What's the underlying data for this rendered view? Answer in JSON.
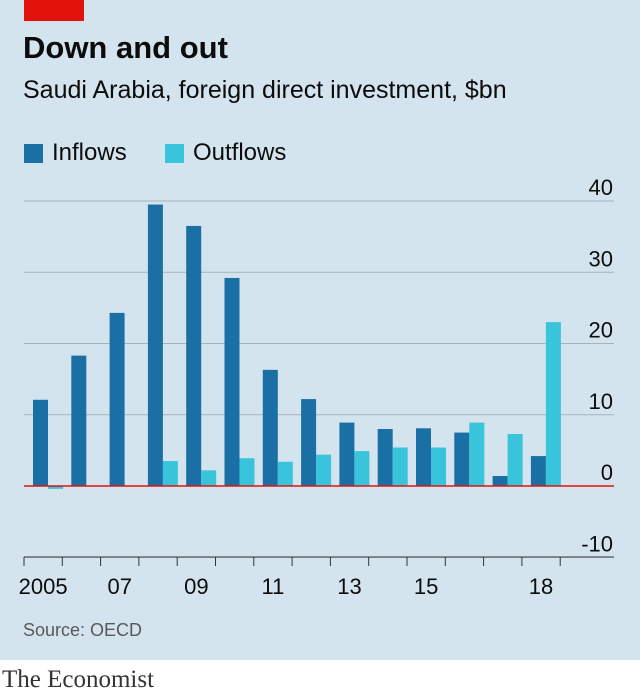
{
  "header": {
    "title": "Down and out",
    "subtitle": "Saudi Arabia, foreign direct investment, $bn"
  },
  "legend": [
    {
      "label": "Inflows",
      "color": "#1a6fa5"
    },
    {
      "label": "Outflows",
      "color": "#38c4db"
    }
  ],
  "footer": {
    "source": "Source: OECD",
    "brand": "The Economist"
  },
  "colors": {
    "background": "#d4e4ee",
    "accent": "#e3120b",
    "gridline": "#a9b2b8",
    "zero_line": "#e3120b"
  },
  "chart_data": {
    "type": "bar",
    "categories": [
      "2005",
      "2006",
      "2007",
      "2008",
      "2009",
      "2010",
      "2011",
      "2012",
      "2013",
      "2014",
      "2015",
      "2016",
      "2017",
      "2018"
    ],
    "tick_labels": [
      "2005",
      "",
      "07",
      "",
      "09",
      "",
      "11",
      "",
      "13",
      "",
      "15",
      "",
      "",
      "18"
    ],
    "series": [
      {
        "name": "Inflows",
        "values": [
          12.1,
          18.3,
          24.3,
          39.5,
          36.5,
          29.2,
          16.3,
          12.2,
          8.9,
          8.0,
          8.1,
          7.5,
          1.4,
          4.2
        ]
      },
      {
        "name": "Outflows",
        "values": [
          -0.4,
          0,
          0,
          3.5,
          2.2,
          3.9,
          3.4,
          4.4,
          4.9,
          5.4,
          5.4,
          8.9,
          7.3,
          23.0
        ]
      }
    ],
    "y_ticks": [
      40,
      30,
      20,
      10,
      0,
      -10
    ],
    "ylim": [
      -10,
      40
    ],
    "grid": true,
    "legend_position": "top-left",
    "y_axis_side": "right"
  }
}
